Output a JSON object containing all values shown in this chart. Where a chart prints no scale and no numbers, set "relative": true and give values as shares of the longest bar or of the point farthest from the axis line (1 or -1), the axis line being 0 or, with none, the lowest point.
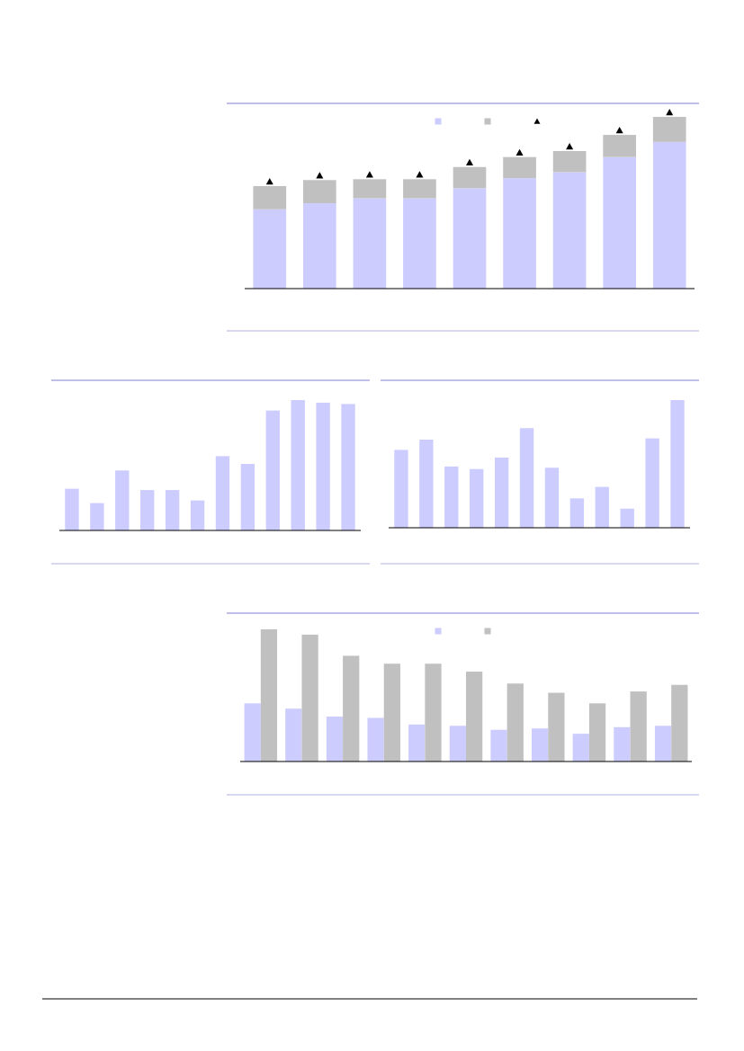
{
  "chart_data": [
    {
      "type": "bar",
      "relative": true,
      "stacked": true,
      "marker": "triangle",
      "categories": [
        null,
        null,
        null,
        null,
        null,
        null,
        null,
        null,
        null
      ],
      "series": [
        {
          "color": "#ccccff",
          "values": [
            0.462,
            0.497,
            0.526,
            0.526,
            0.585,
            0.643,
            0.678,
            0.766,
            0.854
          ]
        },
        {
          "color": "#c0c0c0",
          "values": [
            0.135,
            0.135,
            0.111,
            0.111,
            0.123,
            0.123,
            0.123,
            0.129,
            0.146
          ]
        }
      ]
    },
    {
      "type": "bar",
      "relative": true,
      "categories": [
        null,
        null,
        null,
        null,
        null,
        null,
        null,
        null,
        null,
        null,
        null,
        null
      ],
      "series": [
        {
          "color": "#ccccff",
          "values": [
            0.32,
            0.21,
            0.46,
            0.31,
            0.31,
            0.23,
            0.57,
            0.51,
            0.92,
            1.0,
            0.98,
            0.97
          ]
        }
      ]
    },
    {
      "type": "bar",
      "relative": true,
      "categories": [
        null,
        null,
        null,
        null,
        null,
        null,
        null,
        null,
        null,
        null,
        null,
        null
      ],
      "series": [
        {
          "color": "#ccccff",
          "values": [
            0.61,
            0.69,
            0.48,
            0.46,
            0.55,
            0.78,
            0.47,
            0.23,
            0.32,
            0.15,
            0.7,
            1.0
          ]
        }
      ]
    },
    {
      "type": "bar",
      "relative": true,
      "categories": [
        null,
        null,
        null,
        null,
        null,
        null,
        null,
        null,
        null,
        null,
        null
      ],
      "series": [
        {
          "color": "#ccccff",
          "values": [
            0.44,
            0.4,
            0.34,
            0.33,
            0.28,
            0.27,
            0.24,
            0.25,
            0.21,
            0.26,
            0.27
          ]
        },
        {
          "color": "#c0c0c0",
          "values": [
            1.0,
            0.96,
            0.8,
            0.74,
            0.74,
            0.68,
            0.59,
            0.52,
            0.44,
            0.53,
            0.58
          ]
        }
      ]
    }
  ]
}
